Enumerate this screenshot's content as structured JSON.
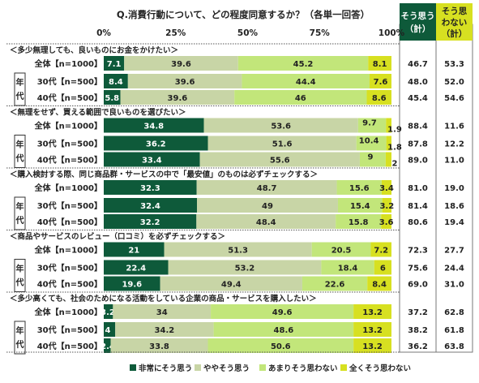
{
  "chart_data": {
    "type": "bar",
    "orientation": "horizontal",
    "stacked": true,
    "percent_stacked": true,
    "title": "Q.消費行動について、どの程度同意するか？（各単一回答）",
    "xlim": [
      0,
      100
    ],
    "x_ticks": [
      "0%",
      "25%",
      "50%",
      "75%",
      "100%"
    ],
    "group_label": "年代",
    "legend_position": "bottom",
    "colors": [
      "#0e5a3a",
      "#c8d5a6",
      "#c2e67a",
      "#d7e021"
    ],
    "series": [
      {
        "name": "非常にそう思う"
      },
      {
        "name": "ややそう思う"
      },
      {
        "name": "あまりそう思わない"
      },
      {
        "name": "全くそう思わない"
      }
    ],
    "extra_columns": {
      "agree": {
        "label_1": "そう思う",
        "label_2": "（計）",
        "color": "#0e5a3a"
      },
      "disagree": {
        "label_1": "そう思",
        "label_2": "わない",
        "label_3": "（計）",
        "color": "#d7e021"
      }
    },
    "questions": [
      {
        "title": "＜多少無理しても、良いものにお金をかけたい＞",
        "rows": [
          {
            "label": "全体【n=1000】",
            "values": [
              7.1,
              39.6,
              45.2,
              8.1
            ],
            "agree": "46.7",
            "disagree": "53.3"
          },
          {
            "label": "30代【n=500】",
            "values": [
              8.4,
              39.6,
              44.4,
              7.6
            ],
            "agree": "48.0",
            "disagree": "52.0"
          },
          {
            "label": "40代【n=500】",
            "values": [
              5.8,
              39.6,
              46.0,
              8.6
            ],
            "agree": "45.4",
            "disagree": "54.6"
          }
        ]
      },
      {
        "title": "＜無理をせず、買える範囲で良いものを選びたい＞",
        "rows": [
          {
            "label": "全体【n=1000】",
            "values": [
              34.8,
              53.6,
              9.7,
              1.9
            ],
            "agree": "88.4",
            "disagree": "11.6"
          },
          {
            "label": "30代【n=500】",
            "values": [
              36.2,
              51.6,
              10.4,
              1.8
            ],
            "agree": "87.8",
            "disagree": "12.2"
          },
          {
            "label": "40代【n=500】",
            "values": [
              33.4,
              55.6,
              9.0,
              2.0
            ],
            "agree": "89.0",
            "disagree": "11.0"
          }
        ]
      },
      {
        "title": "＜購入検討する際、同じ商品群・サービスの中で「最安値」のものは必ずチェックする＞",
        "rows": [
          {
            "label": "全体【n=1000】",
            "values": [
              32.3,
              48.7,
              15.6,
              3.4
            ],
            "agree": "81.0",
            "disagree": "19.0"
          },
          {
            "label": "30代【n=500】",
            "values": [
              32.4,
              49.0,
              15.4,
              3.2
            ],
            "agree": "81.4",
            "disagree": "18.6"
          },
          {
            "label": "40代【n=500】",
            "values": [
              32.2,
              48.4,
              15.8,
              3.6
            ],
            "agree": "80.6",
            "disagree": "19.4"
          }
        ]
      },
      {
        "title": "＜商品やサービスのレビュー（口コミ）を必ずチェックする＞",
        "rows": [
          {
            "label": "全体【n=1000】",
            "values": [
              21.0,
              51.3,
              20.5,
              7.2
            ],
            "agree": "72.3",
            "disagree": "27.7"
          },
          {
            "label": "30代【n=500】",
            "values": [
              22.4,
              53.2,
              18.4,
              6.0
            ],
            "agree": "75.6",
            "disagree": "24.4"
          },
          {
            "label": "40代【n=500】",
            "values": [
              19.6,
              49.4,
              22.6,
              8.4
            ],
            "agree": "69.0",
            "disagree": "31.0"
          }
        ]
      },
      {
        "title": "＜多少高くても、社会のためになる活動をしている企業の商品・サービスを購入したい＞",
        "rows": [
          {
            "label": "全体【n=1000】",
            "values": [
              3.2,
              34.0,
              49.6,
              13.2
            ],
            "agree": "37.2",
            "disagree": "62.8"
          },
          {
            "label": "30代【n=500】",
            "values": [
              4.0,
              34.2,
              48.6,
              13.2
            ],
            "agree": "38.2",
            "disagree": "61.8"
          },
          {
            "label": "40代【n=500】",
            "values": [
              2.4,
              33.8,
              50.6,
              13.2
            ],
            "agree": "36.2",
            "disagree": "63.8"
          }
        ]
      }
    ]
  }
}
